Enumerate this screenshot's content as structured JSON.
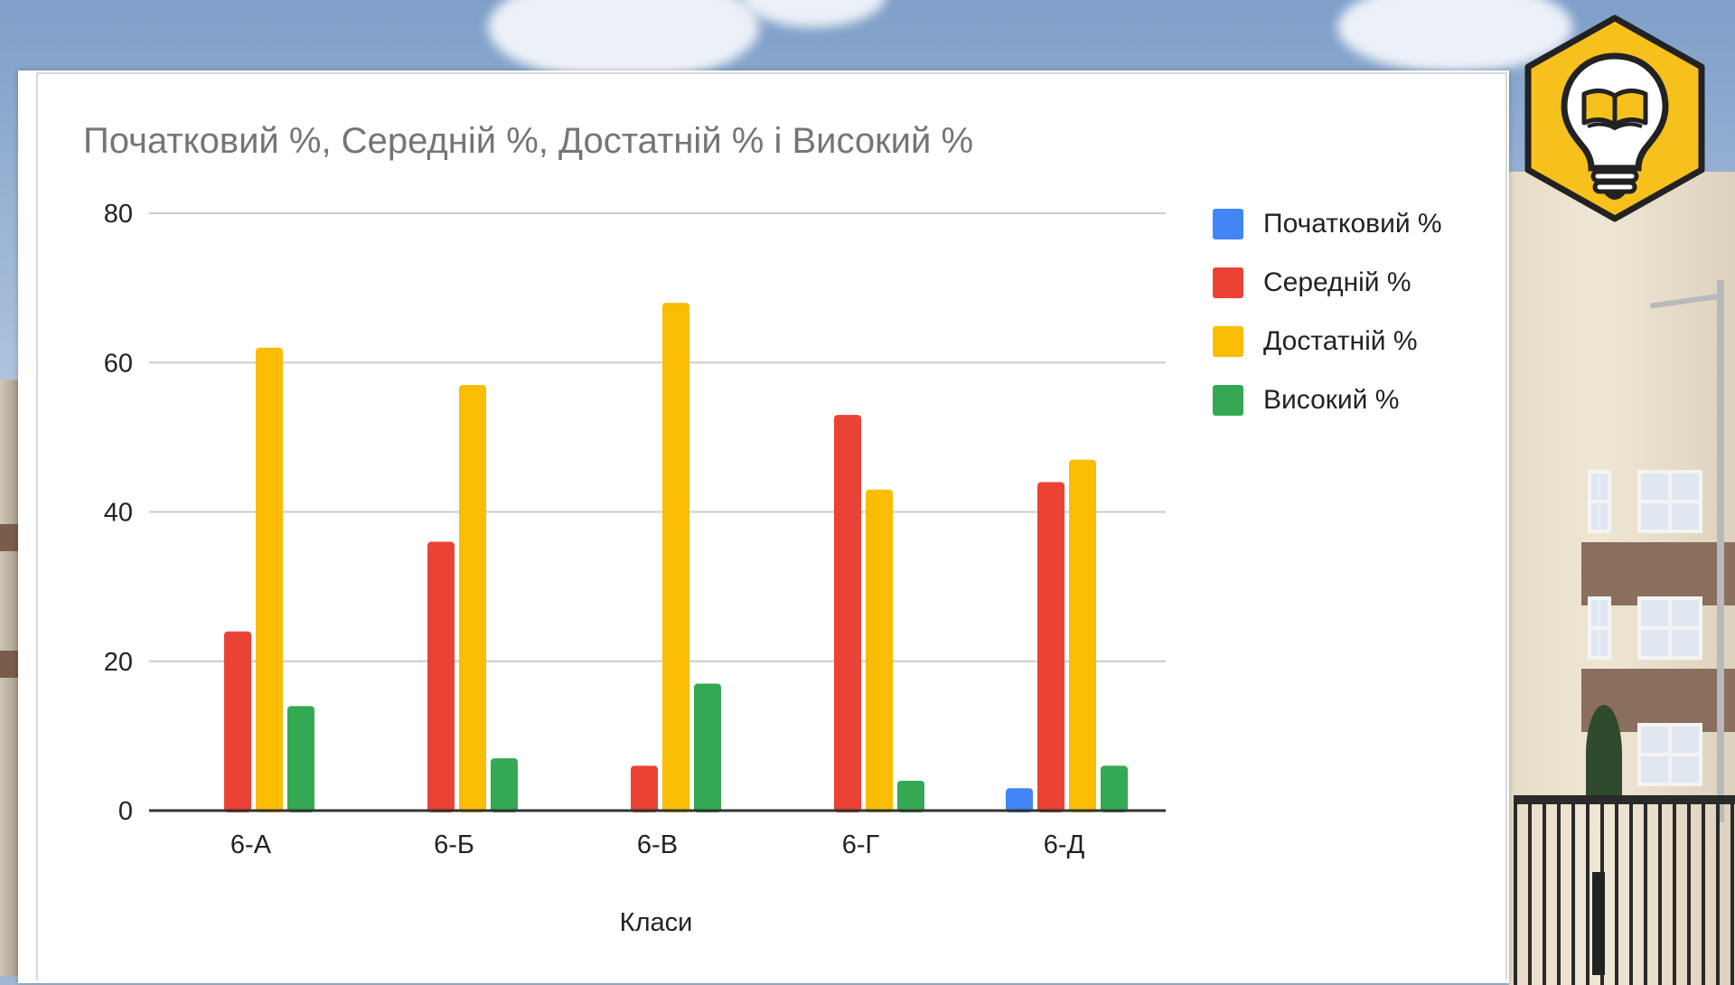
{
  "chart_data": {
    "type": "bar",
    "title": "Початковий %, Середній %, Достатній % і Високий %",
    "xlabel": "Класи",
    "ylabel": "",
    "ylim": [
      0,
      80
    ],
    "yticks": [
      0,
      20,
      40,
      60,
      80
    ],
    "grid": true,
    "legend_position": "right",
    "categories": [
      "6-А",
      "6-Б",
      "6-В",
      "6-Г",
      "6-Д"
    ],
    "series": [
      {
        "name": "Початковий %",
        "color": "#4285f4",
        "values": [
          0,
          0,
          0,
          0,
          3
        ]
      },
      {
        "name": "Середній %",
        "color": "#ea4335",
        "values": [
          24,
          36,
          6,
          53,
          44
        ]
      },
      {
        "name": "Достатній %",
        "color": "#fbbc04",
        "values": [
          62,
          57,
          68,
          43,
          47
        ]
      },
      {
        "name": "Високий %",
        "color": "#34a853",
        "values": [
          14,
          7,
          17,
          4,
          6
        ]
      }
    ]
  },
  "logo": {
    "icon": "lightbulb-book-icon",
    "color": "#f6c01d"
  }
}
